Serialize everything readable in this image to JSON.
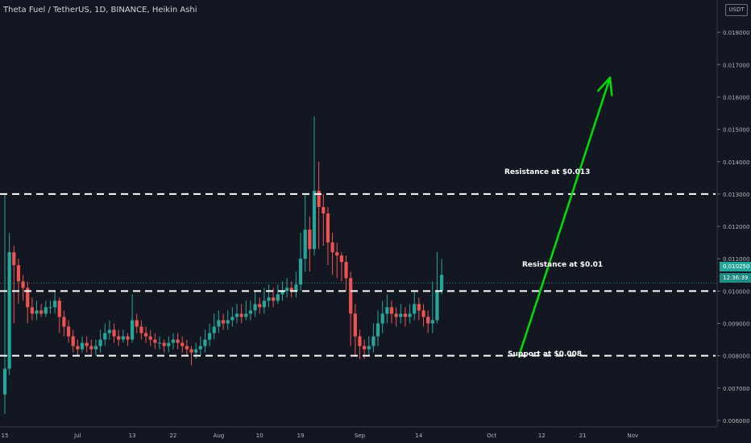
{
  "header": {
    "title": "Theta Fuel / TetherUS, 1D, BINANCE, Heikin Ashi",
    "currency": "USDT"
  },
  "price_tags": {
    "last_price": "0.010250",
    "countdown": "12:36:39"
  },
  "annotations": {
    "resistance_high": "Resistance at $0.013",
    "resistance_mid": "Resistance at $0.01",
    "support": "Support at $0.008"
  },
  "colors": {
    "background": "#131722",
    "up": "#26a69a",
    "down": "#ef5350",
    "arrow": "#00e000",
    "level_line": "#ffffff",
    "axis_text": "#b2b5be"
  },
  "chart_data": {
    "type": "candlestick",
    "style": "Heikin Ashi",
    "symbol": "Theta Fuel / TetherUS",
    "interval": "1D",
    "exchange": "BINANCE",
    "y_axis_ticks": [
      "0.006000",
      "0.007000",
      "0.008000",
      "0.009000",
      "0.010000",
      "0.011000",
      "0.012000",
      "0.013000",
      "0.014000",
      "0.015000",
      "0.016000",
      "0.017000",
      "0.018000"
    ],
    "ylim": [
      0.0058,
      0.019
    ],
    "x_axis_ticks": [
      {
        "label": "15",
        "day": 0
      },
      {
        "label": "Jul",
        "day": 16
      },
      {
        "label": "13",
        "day": 28
      },
      {
        "label": "22",
        "day": 37
      },
      {
        "label": "Aug",
        "day": 47
      },
      {
        "label": "10",
        "day": 56
      },
      {
        "label": "19",
        "day": 65
      },
      {
        "label": "Sep",
        "day": 78
      },
      {
        "label": "14",
        "day": 91
      },
      {
        "label": "Oct",
        "day": 107
      },
      {
        "label": "12",
        "day": 118
      },
      {
        "label": "21",
        "day": 127
      },
      {
        "label": "Nov",
        "day": 138
      }
    ],
    "x_range": [
      0,
      153
    ],
    "horizontal_levels": [
      0.013,
      0.01,
      0.008
    ],
    "arrow": {
      "from": [
        113,
        0.008
      ],
      "to": [
        133,
        0.0166
      ]
    },
    "last_price": 0.01025,
    "candles": [
      [
        0.0068,
        0.0076,
        0.013,
        0.0062
      ],
      [
        0.0076,
        0.0112,
        0.0118,
        0.0074
      ],
      [
        0.0112,
        0.0108,
        0.0114,
        0.009
      ],
      [
        0.0108,
        0.0103,
        0.011,
        0.0096
      ],
      [
        0.0103,
        0.0101,
        0.0105,
        0.0097
      ],
      [
        0.0101,
        0.0095,
        0.0103,
        0.009
      ],
      [
        0.0095,
        0.0093,
        0.0098,
        0.0091
      ],
      [
        0.0093,
        0.0094,
        0.0097,
        0.0091
      ],
      [
        0.0094,
        0.0093,
        0.0096,
        0.0092
      ],
      [
        0.0093,
        0.0095,
        0.0097,
        0.0092
      ],
      [
        0.0095,
        0.0095,
        0.0097,
        0.0093
      ],
      [
        0.0095,
        0.0097,
        0.01,
        0.0093
      ],
      [
        0.0097,
        0.0092,
        0.0098,
        0.0087
      ],
      [
        0.0092,
        0.0089,
        0.0094,
        0.0086
      ],
      [
        0.0089,
        0.0086,
        0.0091,
        0.0084
      ],
      [
        0.0086,
        0.0083,
        0.0088,
        0.0081
      ],
      [
        0.0083,
        0.0082,
        0.0085,
        0.008
      ],
      [
        0.0082,
        0.0084,
        0.0086,
        0.0081
      ],
      [
        0.0084,
        0.0083,
        0.0086,
        0.0081
      ],
      [
        0.0083,
        0.0082,
        0.0085,
        0.008
      ],
      [
        0.0082,
        0.0083,
        0.0085,
        0.008
      ],
      [
        0.0083,
        0.0085,
        0.0088,
        0.0081
      ],
      [
        0.0085,
        0.0087,
        0.009,
        0.0083
      ],
      [
        0.0087,
        0.0088,
        0.0091,
        0.0085
      ],
      [
        0.0088,
        0.0086,
        0.009,
        0.0084
      ],
      [
        0.0086,
        0.0085,
        0.0088,
        0.0083
      ],
      [
        0.0085,
        0.0086,
        0.0088,
        0.0084
      ],
      [
        0.0086,
        0.0085,
        0.0087,
        0.0083
      ],
      [
        0.0085,
        0.0091,
        0.0099,
        0.0084
      ],
      [
        0.0091,
        0.0089,
        0.0093,
        0.0087
      ],
      [
        0.0089,
        0.0087,
        0.0091,
        0.0085
      ],
      [
        0.0087,
        0.0086,
        0.0089,
        0.0084
      ],
      [
        0.0086,
        0.0085,
        0.0088,
        0.0083
      ],
      [
        0.0085,
        0.0084,
        0.0087,
        0.0082
      ],
      [
        0.0084,
        0.0084,
        0.0086,
        0.0082
      ],
      [
        0.0084,
        0.0083,
        0.0085,
        0.0081
      ],
      [
        0.0083,
        0.0084,
        0.0086,
        0.0081
      ],
      [
        0.0084,
        0.0085,
        0.0087,
        0.0082
      ],
      [
        0.0085,
        0.0084,
        0.0087,
        0.0082
      ],
      [
        0.0084,
        0.0083,
        0.0086,
        0.0081
      ],
      [
        0.0083,
        0.0082,
        0.0085,
        0.008
      ],
      [
        0.0082,
        0.0081,
        0.0083,
        0.0077
      ],
      [
        0.0081,
        0.0082,
        0.0084,
        0.0079
      ],
      [
        0.0082,
        0.0083,
        0.0086,
        0.008
      ],
      [
        0.0083,
        0.0085,
        0.0088,
        0.0081
      ],
      [
        0.0085,
        0.0087,
        0.009,
        0.0083
      ],
      [
        0.0087,
        0.0089,
        0.0093,
        0.0085
      ],
      [
        0.0089,
        0.0091,
        0.0094,
        0.0087
      ],
      [
        0.0091,
        0.009,
        0.0093,
        0.0088
      ],
      [
        0.009,
        0.0091,
        0.0094,
        0.0088
      ],
      [
        0.0091,
        0.0092,
        0.0095,
        0.0089
      ],
      [
        0.0092,
        0.0093,
        0.0096,
        0.009
      ],
      [
        0.0093,
        0.0092,
        0.0096,
        0.009
      ],
      [
        0.0092,
        0.0093,
        0.0097,
        0.0091
      ],
      [
        0.0093,
        0.0094,
        0.0097,
        0.0091
      ],
      [
        0.0094,
        0.0096,
        0.01,
        0.0092
      ],
      [
        0.0096,
        0.0095,
        0.0098,
        0.0093
      ],
      [
        0.0095,
        0.0097,
        0.0101,
        0.0093
      ],
      [
        0.0097,
        0.0098,
        0.0102,
        0.0095
      ],
      [
        0.0098,
        0.0097,
        0.0101,
        0.0095
      ],
      [
        0.0097,
        0.0099,
        0.0102,
        0.0096
      ],
      [
        0.0099,
        0.01,
        0.0103,
        0.0097
      ],
      [
        0.01,
        0.0101,
        0.0104,
        0.0098
      ],
      [
        0.0101,
        0.01,
        0.0103,
        0.0098
      ],
      [
        0.01,
        0.0102,
        0.0106,
        0.0098
      ],
      [
        0.0102,
        0.011,
        0.0118,
        0.01
      ],
      [
        0.011,
        0.0119,
        0.013,
        0.0106
      ],
      [
        0.0119,
        0.0113,
        0.0123,
        0.0106
      ],
      [
        0.0113,
        0.0131,
        0.0154,
        0.0111
      ],
      [
        0.0131,
        0.0126,
        0.014,
        0.0113
      ],
      [
        0.0126,
        0.0124,
        0.013,
        0.0114
      ],
      [
        0.0124,
        0.0115,
        0.0126,
        0.0108
      ],
      [
        0.0115,
        0.0112,
        0.0118,
        0.0105
      ],
      [
        0.0112,
        0.0111,
        0.0115,
        0.0104
      ],
      [
        0.0111,
        0.0109,
        0.0112,
        0.0103
      ],
      [
        0.0109,
        0.0104,
        0.0111,
        0.01
      ],
      [
        0.0104,
        0.0093,
        0.0106,
        0.0083
      ],
      [
        0.0093,
        0.0086,
        0.0096,
        0.008
      ],
      [
        0.0086,
        0.0083,
        0.0088,
        0.0079
      ],
      [
        0.0083,
        0.0082,
        0.0085,
        0.0079
      ],
      [
        0.0082,
        0.0083,
        0.0086,
        0.008
      ],
      [
        0.0083,
        0.0086,
        0.009,
        0.0081
      ],
      [
        0.0086,
        0.009,
        0.0094,
        0.0083
      ],
      [
        0.009,
        0.0093,
        0.0097,
        0.0087
      ],
      [
        0.0093,
        0.0095,
        0.0099,
        0.009
      ],
      [
        0.0095,
        0.0093,
        0.0097,
        0.009
      ],
      [
        0.0093,
        0.0092,
        0.0095,
        0.0089
      ],
      [
        0.0092,
        0.0093,
        0.0096,
        0.009
      ],
      [
        0.0093,
        0.0092,
        0.0095,
        0.0089
      ],
      [
        0.0092,
        0.0093,
        0.0096,
        0.009
      ],
      [
        0.0093,
        0.0096,
        0.01,
        0.0091
      ],
      [
        0.0096,
        0.0094,
        0.0098,
        0.0091
      ],
      [
        0.0094,
        0.0092,
        0.0096,
        0.0089
      ],
      [
        0.0092,
        0.009,
        0.0094,
        0.0087
      ],
      [
        0.009,
        0.0091,
        0.0103,
        0.0087
      ],
      [
        0.0091,
        0.01,
        0.0112,
        0.009
      ],
      [
        0.01,
        0.0105,
        0.011,
        0.0099
      ]
    ]
  }
}
